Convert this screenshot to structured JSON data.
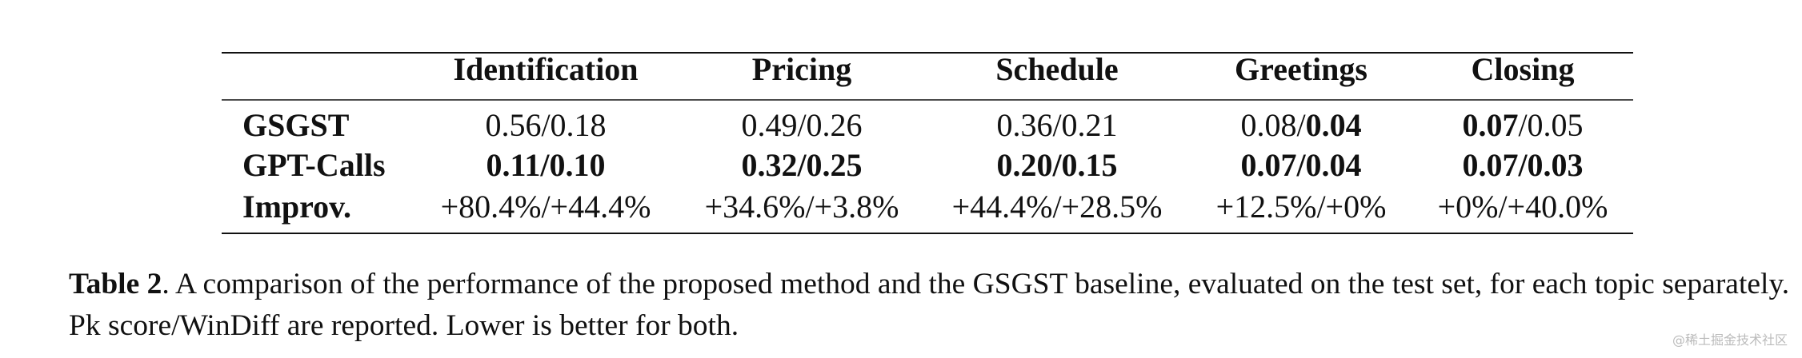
{
  "table": {
    "columns": [
      "Identification",
      "Pricing",
      "Schedule",
      "Greetings",
      "Closing"
    ],
    "rows": [
      {
        "label": "GSGST",
        "cells": [
          [
            {
              "text": "0.56/0.18",
              "bold": false
            }
          ],
          [
            {
              "text": "0.49/0.26",
              "bold": false
            }
          ],
          [
            {
              "text": "0.36/0.21",
              "bold": false
            }
          ],
          [
            {
              "text": "0.08/",
              "bold": false
            },
            {
              "text": "0.04",
              "bold": true
            }
          ],
          [
            {
              "text": "0.07",
              "bold": true
            },
            {
              "text": "/0.05",
              "bold": false
            }
          ]
        ]
      },
      {
        "label": "GPT-Calls",
        "cells": [
          [
            {
              "text": "0.11/0.10",
              "bold": true
            }
          ],
          [
            {
              "text": "0.32/0.25",
              "bold": true
            }
          ],
          [
            {
              "text": "0.20/0.15",
              "bold": true
            }
          ],
          [
            {
              "text": "0.07/0.04",
              "bold": true
            }
          ],
          [
            {
              "text": "0.07/0.03",
              "bold": true
            }
          ]
        ]
      },
      {
        "label": "Improv.",
        "cells": [
          [
            {
              "text": "+80.4%/+44.4%",
              "bold": false
            }
          ],
          [
            {
              "text": "+34.6%/+3.8%",
              "bold": false
            }
          ],
          [
            {
              "text": "+44.4%/+28.5%",
              "bold": false
            }
          ],
          [
            {
              "text": "+12.5%/+0%",
              "bold": false
            }
          ],
          [
            {
              "text": "+0%/+40.0%",
              "bold": false
            }
          ]
        ]
      }
    ]
  },
  "caption": {
    "label": "Table 2",
    "text": ".  A comparison of the performance of the proposed method and the GSGST baseline, evaluated on the test set, for each topic separately. Pk score/WinDiff are reported. Lower is better for both."
  },
  "watermark": "@稀土掘金技术社区"
}
